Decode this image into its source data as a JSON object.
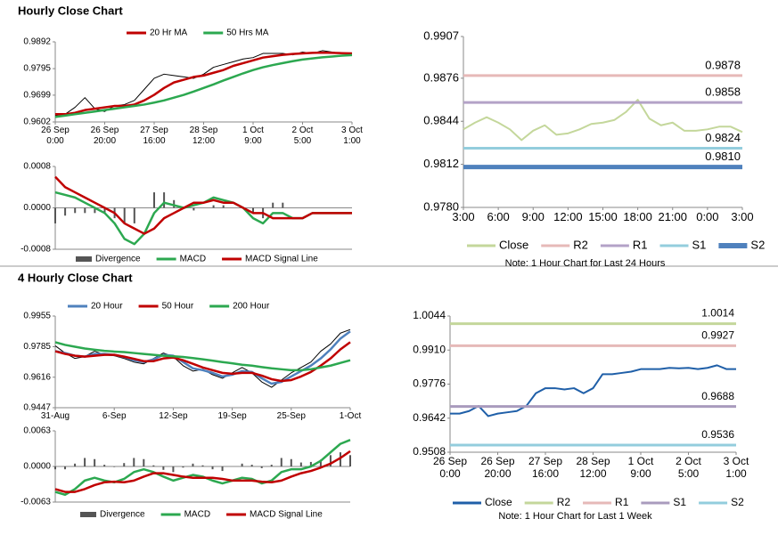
{
  "sections": [
    "Hourly Close Chart",
    "4 Hourly Close Chart"
  ],
  "chart_data": [
    {
      "type": "line",
      "categories": [
        "26 Sep\n0:00",
        null,
        null,
        null,
        null,
        "26 Sep\n20:00",
        null,
        null,
        null,
        null,
        "27 Sep\n16:00",
        null,
        null,
        null,
        null,
        "28 Sep\n12:00",
        null,
        null,
        null,
        null,
        "1 Oct\n9:00",
        null,
        null,
        null,
        null,
        "2 Oct\n5:00",
        null,
        null,
        null,
        null,
        "3 Oct\n1:00"
      ],
      "values": [
        0.9625,
        0.963,
        0.9655,
        0.969,
        0.965,
        0.964,
        0.966,
        0.9665,
        0.968,
        0.972,
        0.976,
        0.9775,
        0.977,
        0.9765,
        0.976,
        0.9775,
        0.98,
        0.981,
        0.982,
        0.983,
        0.9835,
        0.985,
        0.985,
        0.985,
        0.9845,
        0.9855,
        0.985,
        0.986,
        0.9855,
        0.985,
        0.985
      ],
      "color": "#000000",
      "series": [
        {
          "name": "20 Hr MA",
          "color": "#c00000",
          "values": [
            0.963,
            0.963,
            0.9635,
            0.9645,
            0.965,
            0.9655,
            0.966,
            0.966,
            0.9665,
            0.968,
            0.97,
            0.9725,
            0.9745,
            0.9755,
            0.9765,
            0.977,
            0.978,
            0.979,
            0.9805,
            0.9815,
            0.9825,
            0.9835,
            0.984,
            0.9845,
            0.9848,
            0.985,
            0.9852,
            0.9853,
            0.9852,
            0.9851,
            0.985
          ]
        },
        {
          "name": "50 Hrs MA",
          "color": "#2ca850",
          "values": [
            0.962,
            0.9625,
            0.963,
            0.9635,
            0.964,
            0.9645,
            0.965,
            0.9655,
            0.966,
            0.9665,
            0.9672,
            0.968,
            0.969,
            0.97,
            0.9712,
            0.9725,
            0.9738,
            0.9752,
            0.9765,
            0.9778,
            0.979,
            0.98,
            0.9808,
            0.9815,
            0.9822,
            0.9828,
            0.9832,
            0.9836,
            0.9839,
            0.9842,
            0.9844
          ]
        }
      ],
      "ylim": [
        0.9602,
        0.9892
      ],
      "yticks": [
        0.9892,
        0.9795,
        0.9699,
        0.9602
      ]
    },
    {
      "type": "macd",
      "categories": [
        null,
        null,
        null,
        null,
        null,
        null,
        null,
        null,
        null,
        null,
        null,
        null,
        null,
        null,
        null,
        null,
        null,
        null,
        null,
        null,
        null,
        null,
        null,
        null,
        null,
        null,
        null,
        null,
        null,
        null,
        null
      ],
      "series": [
        {
          "name": "Divergence",
          "color": "#555555",
          "style": "bar",
          "values": [
            -0.0003,
            -0.00015,
            -0.0001,
            -0.0001,
            -0.0001,
            -0.0001,
            -0.0002,
            -0.0003,
            -0.0003,
            0.0,
            0.0003,
            0.0003,
            0.00015,
            0.0,
            -5e-05,
            0.0,
            5e-05,
            5e-05,
            0.0,
            0.0,
            -0.0001,
            -0.0002,
            0.0001,
            0.0001,
            0.0,
            0.0,
            0.0,
            0.0,
            0.0,
            0.0,
            0.0
          ]
        },
        {
          "name": "MACD",
          "color": "#2ca850",
          "values": [
            0.0003,
            0.00025,
            0.0002,
            0.0001,
            0.0,
            -0.0001,
            -0.0003,
            -0.0006,
            -0.0007,
            -0.0005,
            -0.0001,
            0.0001,
            5e-05,
            0.0,
            5e-05,
            0.0001,
            0.0002,
            0.00015,
            0.0001,
            0.0,
            -0.0002,
            -0.0003,
            -0.0001,
            -0.0001,
            -0.0002,
            -0.0002,
            -0.0001,
            -0.0001,
            -0.0001,
            -0.0001,
            -0.0001
          ]
        },
        {
          "name": "MACD Signal Line",
          "color": "#c00000",
          "values": [
            0.0006,
            0.0004,
            0.0003,
            0.0002,
            0.0001,
            0.0,
            -0.0001,
            -0.0003,
            -0.0004,
            -0.0005,
            -0.0004,
            -0.0002,
            -0.0001,
            0.0,
            0.0001,
            0.0001,
            0.00015,
            0.0001,
            0.0001,
            0.0,
            -0.0001,
            -0.0001,
            -0.0002,
            -0.0002,
            -0.0002,
            -0.0002,
            -0.0001,
            -0.0001,
            -0.0001,
            -0.0001,
            -0.0001
          ]
        }
      ],
      "ylim": [
        -0.0008,
        0.0008
      ],
      "yticks": [
        0.0008,
        {
          "value": 0,
          "label": "0.0000"
        },
        -0.0008
      ]
    },
    {
      "type": "levels",
      "categories": [
        "3:00",
        null,
        null,
        "6:00",
        null,
        null,
        "9:00",
        null,
        null,
        "12:00",
        null,
        null,
        "15:00",
        null,
        null,
        "18:00",
        null,
        null,
        "21:00",
        null,
        null,
        "0:00",
        null,
        null,
        "3:00"
      ],
      "series": [
        {
          "name": "Close",
          "color": "#c4d79b",
          "values": [
            0.9838,
            0.9843,
            0.9847,
            0.9843,
            0.9838,
            0.983,
            0.9837,
            0.9841,
            0.9834,
            0.9835,
            0.9838,
            0.9842,
            0.9843,
            0.9845,
            0.9851,
            0.986,
            0.9846,
            0.9841,
            0.9843,
            0.9837,
            0.9837,
            0.9838,
            0.984,
            0.984,
            0.9836
          ]
        },
        {
          "name": "R2",
          "color": "#e6b9b8",
          "value": 0.9878
        },
        {
          "name": "R1",
          "color": "#b3a2c7",
          "value": 0.9858
        },
        {
          "name": "S1",
          "color": "#93cddd",
          "value": 0.9824
        },
        {
          "name": "S2",
          "color": "#4f81bd",
          "style": "thick",
          "value": 0.981,
          "value_label": "0.9810"
        }
      ],
      "note": "Note: 1 Hour Chart for Last 24 Hours",
      "ylim": [
        0.978,
        0.9907
      ],
      "yticks": [
        0.9907,
        0.9876,
        0.9844,
        0.9812,
        {
          "value": 0.978,
          "label": "0.9780"
        }
      ]
    },
    {
      "type": "line",
      "categories": [
        "31-Aug",
        null,
        null,
        null,
        null,
        null,
        "6-Sep",
        null,
        null,
        null,
        null,
        null,
        "12-Sep",
        null,
        null,
        null,
        null,
        null,
        "19-Sep",
        null,
        null,
        null,
        null,
        null,
        "25-Sep",
        null,
        null,
        null,
        null,
        null,
        "1-Oct"
      ],
      "values": [
        0.979,
        0.975,
        0.972,
        0.973,
        0.976,
        0.974,
        0.9735,
        0.972,
        0.97,
        0.969,
        0.972,
        0.975,
        0.973,
        0.968,
        0.965,
        0.966,
        0.963,
        0.961,
        0.964,
        0.967,
        0.964,
        0.959,
        0.956,
        0.96,
        0.964,
        0.967,
        0.97,
        0.976,
        0.98,
        0.986,
        0.988
      ],
      "color": "#000000",
      "series": [
        {
          "name": "20 Hour",
          "color": "#4f81bd",
          "values": [
            0.976,
            0.975,
            0.9735,
            0.973,
            0.9745,
            0.9745,
            0.974,
            0.9728,
            0.971,
            0.97,
            0.9715,
            0.974,
            0.9735,
            0.97,
            0.9665,
            0.9655,
            0.964,
            0.962,
            0.963,
            0.965,
            0.9645,
            0.961,
            0.958,
            0.959,
            0.962,
            0.965,
            0.968,
            0.972,
            0.977,
            0.983,
            0.987
          ]
        },
        {
          "name": "50 Hour",
          "color": "#c00000",
          "values": [
            0.976,
            0.9745,
            0.9735,
            0.973,
            0.9735,
            0.974,
            0.974,
            0.973,
            0.9718,
            0.9705,
            0.9705,
            0.972,
            0.9725,
            0.971,
            0.969,
            0.967,
            0.9655,
            0.964,
            0.9635,
            0.964,
            0.964,
            0.9625,
            0.9605,
            0.9595,
            0.96,
            0.962,
            0.9645,
            0.968,
            0.972,
            0.977,
            0.981
          ]
        },
        {
          "name": "200 Hour",
          "color": "#2ca850",
          "values": [
            0.981,
            0.9795,
            0.9785,
            0.9775,
            0.9768,
            0.9762,
            0.9758,
            0.9755,
            0.975,
            0.9745,
            0.974,
            0.9735,
            0.9732,
            0.9728,
            0.9722,
            0.9715,
            0.9708,
            0.97,
            0.9693,
            0.9685,
            0.968,
            0.9672,
            0.9665,
            0.966,
            0.9655,
            0.9655,
            0.966,
            0.967,
            0.968,
            0.9695,
            0.971
          ]
        }
      ],
      "ylim": [
        0.9447,
        0.9955
      ],
      "yticks": [
        0.9955,
        0.9785,
        0.9616,
        0.9447
      ]
    },
    {
      "type": "macd",
      "categories": [
        null,
        null,
        null,
        null,
        null,
        null,
        null,
        null,
        null,
        null,
        null,
        null,
        null,
        null,
        null,
        null,
        null,
        null,
        null,
        null,
        null,
        null,
        null,
        null,
        null,
        null,
        null,
        null,
        null,
        null,
        null
      ],
      "series": [
        {
          "name": "Divergence",
          "color": "#555555",
          "style": "bar",
          "values": [
            -0.0005,
            -0.0005,
            0.0005,
            0.0015,
            0.0013,
            0.0003,
            -0.0001,
            0.0006,
            0.0015,
            0.0013,
            0.0002,
            -0.0006,
            -0.001,
            -0.0002,
            0.0005,
            0.0002,
            -0.0005,
            -0.0008,
            0.0,
            0.0005,
            0.0003,
            -0.0003,
            0.0003,
            0.0015,
            0.0013,
            0.0007,
            0.0008,
            0.0012,
            0.002,
            0.0025,
            0.002
          ]
        },
        {
          "name": "MACD",
          "color": "#2ca850",
          "values": [
            -0.0045,
            -0.005,
            -0.004,
            -0.0025,
            -0.002,
            -0.0025,
            -0.0028,
            -0.0022,
            -0.001,
            -0.0005,
            -0.001,
            -0.0018,
            -0.0025,
            -0.002,
            -0.0015,
            -0.0018,
            -0.0025,
            -0.003,
            -0.0025,
            -0.002,
            -0.0022,
            -0.003,
            -0.0025,
            -0.001,
            -0.0005,
            -0.0005,
            0.0,
            0.001,
            0.0025,
            0.004,
            0.0047
          ]
        },
        {
          "name": "MACD Signal Line",
          "color": "#c00000",
          "values": [
            -0.004,
            -0.0045,
            -0.0045,
            -0.004,
            -0.0033,
            -0.0028,
            -0.0027,
            -0.0028,
            -0.0025,
            -0.0018,
            -0.0012,
            -0.0012,
            -0.0015,
            -0.0018,
            -0.002,
            -0.002,
            -0.002,
            -0.0022,
            -0.0025,
            -0.0025,
            -0.0025,
            -0.0027,
            -0.0028,
            -0.0025,
            -0.0018,
            -0.0012,
            -0.0008,
            -0.0002,
            0.0005,
            0.0015,
            0.0027
          ]
        }
      ],
      "ylim": [
        -0.0063,
        0.0063
      ],
      "yticks": [
        0.0063,
        {
          "value": 0,
          "label": "0.0000"
        },
        -0.0063
      ]
    },
    {
      "type": "levels",
      "categories": [
        "26 Sep\n0:00",
        null,
        null,
        null,
        null,
        "26 Sep\n20:00",
        null,
        null,
        null,
        null,
        "27 Sep\n16:00",
        null,
        null,
        null,
        null,
        "28 Sep\n12:00",
        null,
        null,
        null,
        null,
        "1 Oct\n9:00",
        null,
        null,
        null,
        null,
        "2 Oct\n5:00",
        null,
        null,
        null,
        null,
        "3 Oct\n1:00"
      ],
      "series": [
        {
          "name": "Close",
          "color": "#1f5fa8",
          "values": [
            0.966,
            0.966,
            0.967,
            0.969,
            0.965,
            0.966,
            0.9665,
            0.967,
            0.969,
            0.974,
            0.976,
            0.976,
            0.9755,
            0.976,
            0.974,
            0.976,
            0.9815,
            0.9815,
            0.982,
            0.9825,
            0.9835,
            0.9835,
            0.9835,
            0.984,
            0.9838,
            0.984,
            0.9835,
            0.984,
            0.985,
            0.9835,
            0.9835
          ]
        },
        {
          "name": "R2",
          "color": "#c4d79b",
          "value": 1.0014
        },
        {
          "name": "R1",
          "color": "#e6b9b8",
          "value": 0.9927
        },
        {
          "name": "S1",
          "color": "#a99bbd",
          "value": 0.9688
        },
        {
          "name": "S2",
          "color": "#93cddd",
          "value": 0.9536
        }
      ],
      "note": "Note: 1 Hour Chart for Last 1 Week",
      "ylim": [
        0.9508,
        1.0044
      ],
      "yticks": [
        1.0044,
        {
          "value": 0.991,
          "label": "0.9910"
        },
        0.9776,
        0.9642,
        0.9508
      ]
    }
  ]
}
